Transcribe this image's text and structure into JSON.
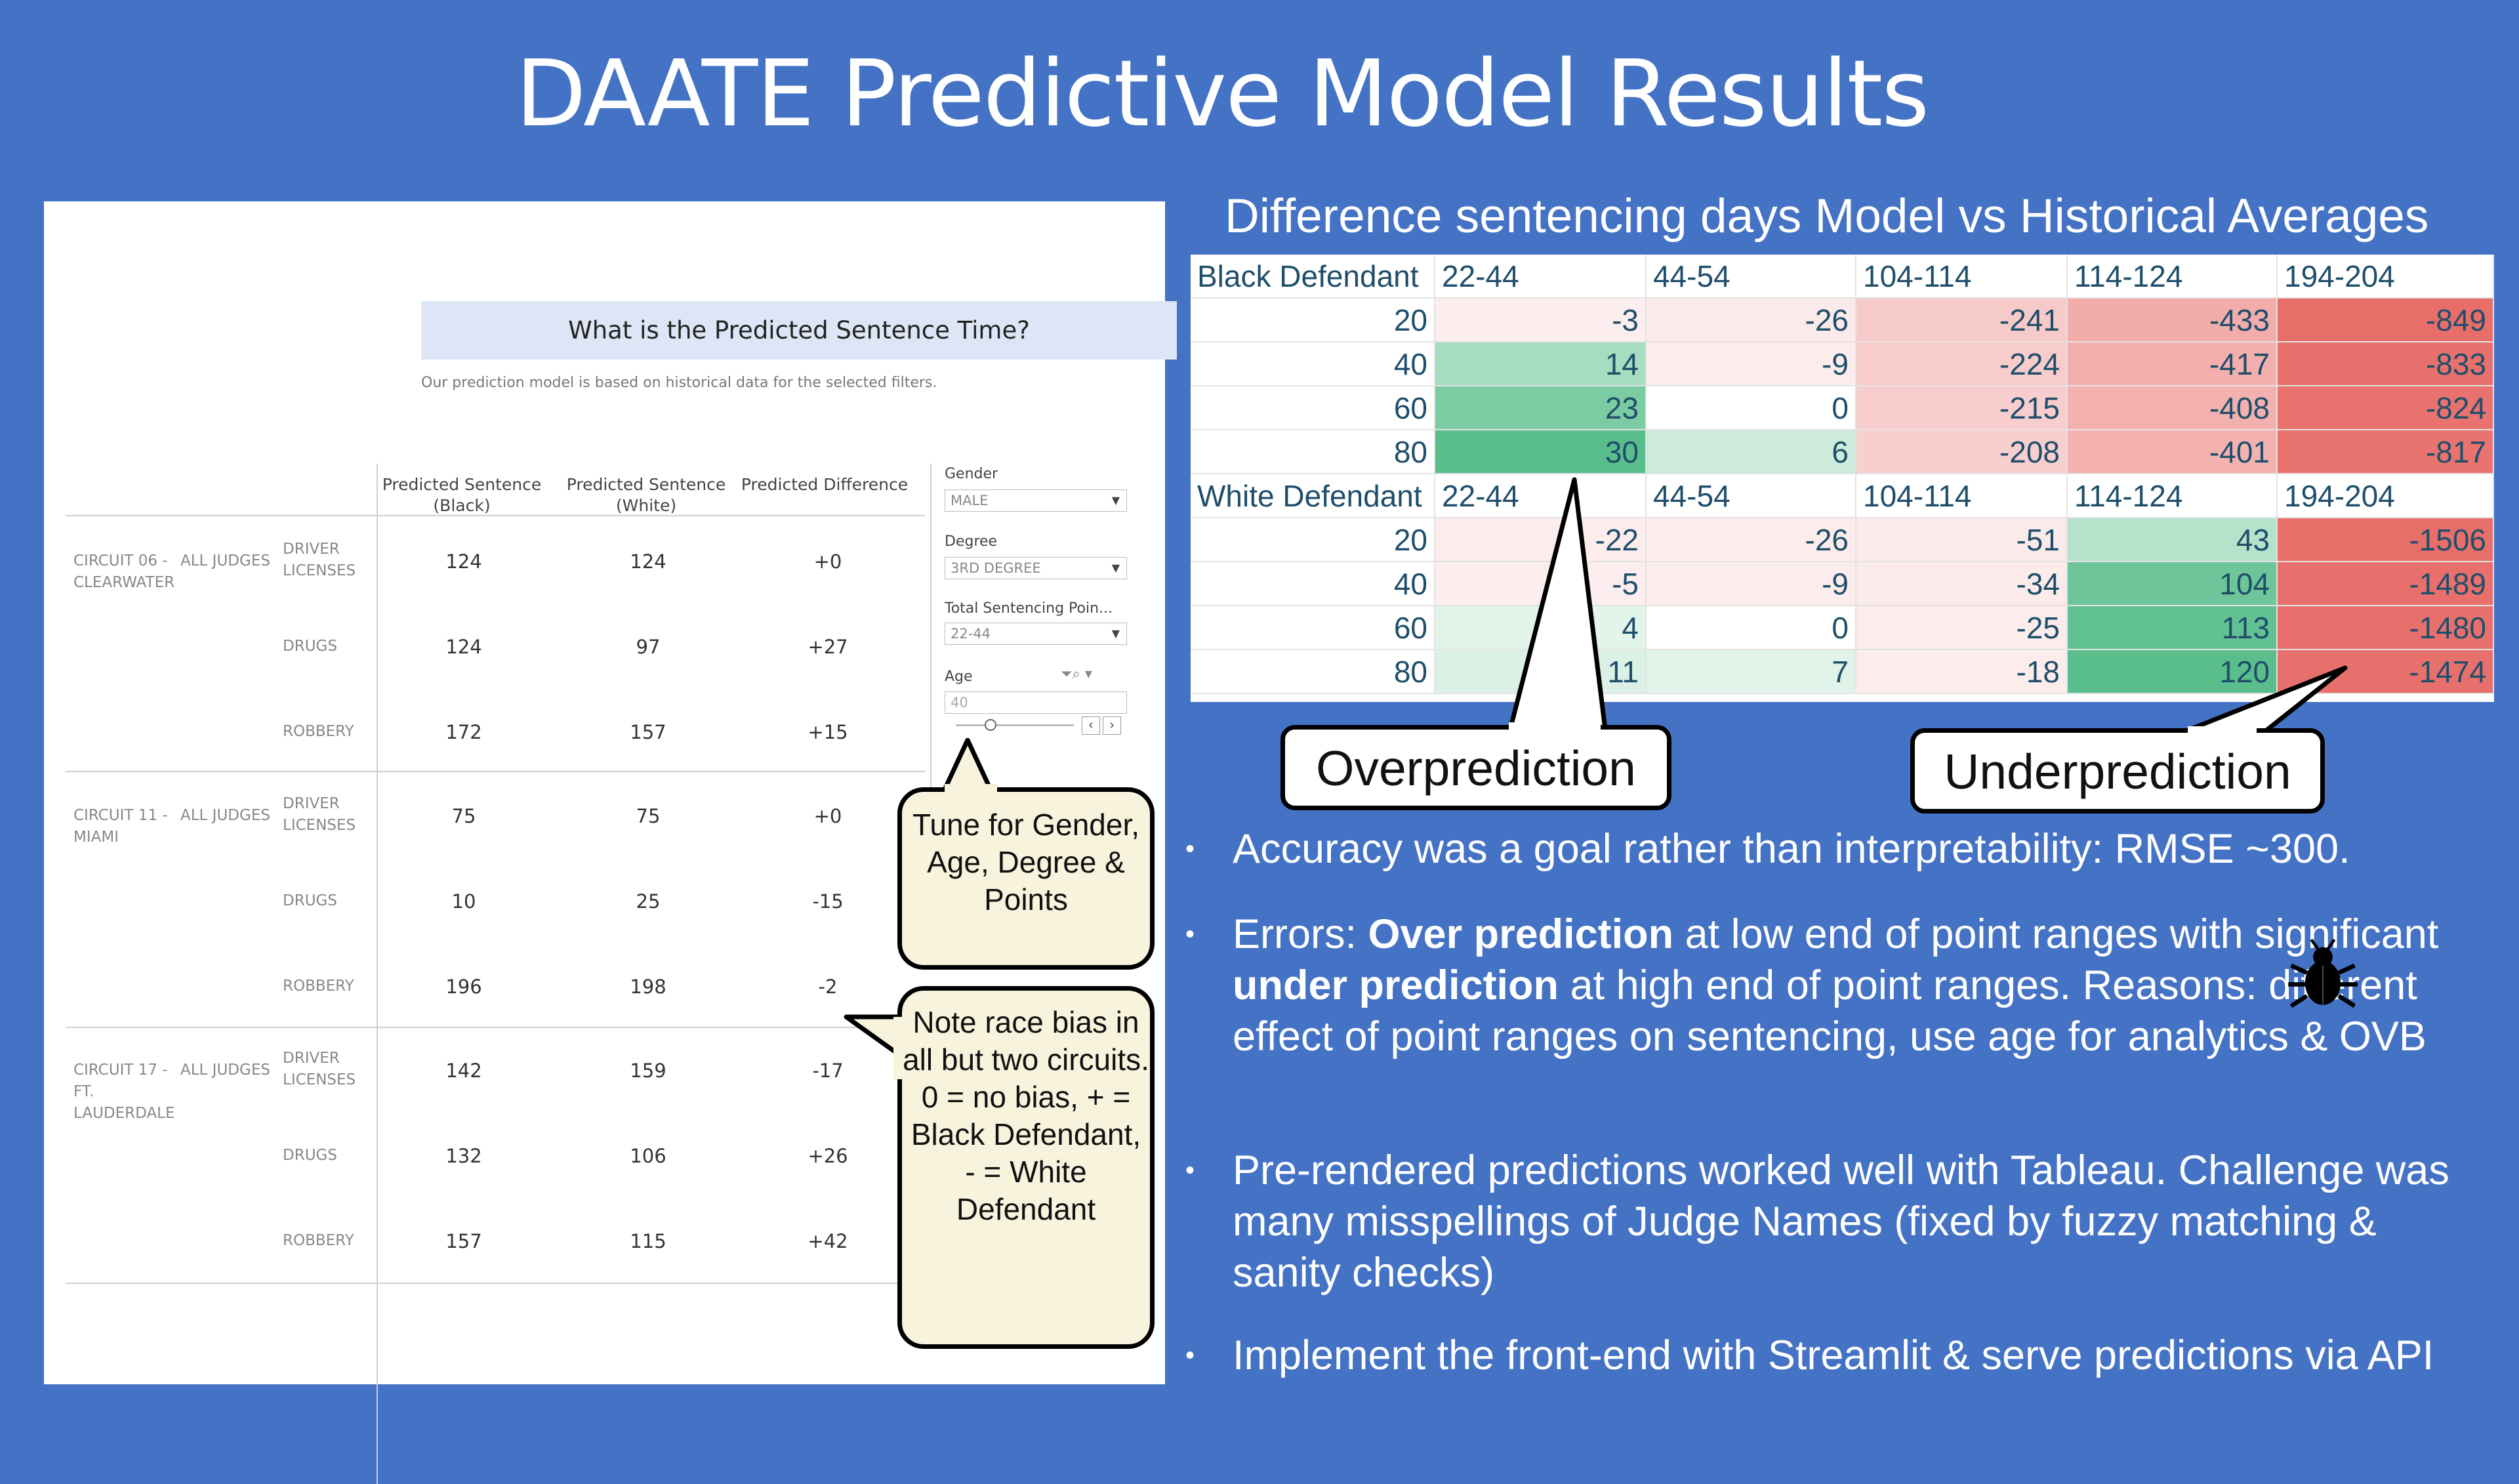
{
  "slide": {
    "title": "DAATE Predictive Model Results"
  },
  "dashboard": {
    "heading": "What is the Predicted Sentence Time?",
    "subheading": "Our prediction model is based on historical data for the selected filters.",
    "columns": [
      "Predicted Sentence (Black)",
      "Predicted Sentence (White)",
      "Predicted Difference"
    ],
    "circuits": [
      {
        "name": "CIRCUIT 06 - CLEARWATER",
        "judge": "ALL JUDGES",
        "rows": [
          {
            "offense": "DRIVER LICENSES",
            "black": "124",
            "white": "124",
            "diff": "+0"
          },
          {
            "offense": "DRUGS",
            "black": "124",
            "white": "97",
            "diff": "+27"
          },
          {
            "offense": "ROBBERY",
            "black": "172",
            "white": "157",
            "diff": "+15"
          }
        ]
      },
      {
        "name": "CIRCUIT 11 - MIAMI",
        "judge": "ALL JUDGES",
        "rows": [
          {
            "offense": "DRIVER LICENSES",
            "black": "75",
            "white": "75",
            "diff": "+0"
          },
          {
            "offense": "DRUGS",
            "black": "10",
            "white": "25",
            "diff": "-15"
          },
          {
            "offense": "ROBBERY",
            "black": "196",
            "white": "198",
            "diff": "-2"
          }
        ]
      },
      {
        "name": "CIRCUIT 17 - FT. LAUDERDALE",
        "judge": "ALL JUDGES",
        "rows": [
          {
            "offense": "DRIVER LICENSES",
            "black": "142",
            "white": "159",
            "diff": "-17"
          },
          {
            "offense": "DRUGS",
            "black": "132",
            "white": "106",
            "diff": "+26"
          },
          {
            "offense": "ROBBERY",
            "black": "157",
            "white": "115",
            "diff": "+42"
          }
        ]
      }
    ],
    "filters": {
      "gender": {
        "label": "Gender",
        "value": "MALE"
      },
      "degree": {
        "label": "Degree",
        "value": "3RD DEGREE"
      },
      "points": {
        "label": "Total Sentencing Poin...",
        "value": "22-44"
      },
      "age": {
        "label": "Age",
        "value": "40"
      }
    }
  },
  "callouts": {
    "tune": "Tune for Gender, Age, Degree & Points",
    "bias": "Note race bias in all but two circuits. 0 = no bias, + = Black Defendant, - = White Defendant",
    "over": "Overprediction",
    "under": "Underprediction"
  },
  "heatmap": {
    "title": "Difference sentencing days Model vs Historical Averages",
    "columns": [
      "22-44",
      "44-54",
      "104-114",
      "114-124",
      "194-204"
    ],
    "groups": [
      {
        "label": "Black Defendant",
        "rows": [
          {
            "age": "20",
            "values": [
              -3,
              -26,
              -241,
              -433,
              -849
            ]
          },
          {
            "age": "40",
            "values": [
              14,
              -9,
              -224,
              -417,
              -833
            ]
          },
          {
            "age": "60",
            "values": [
              23,
              0,
              -215,
              -408,
              -824
            ]
          },
          {
            "age": "80",
            "values": [
              30,
              6,
              -208,
              -401,
              -817
            ]
          }
        ]
      },
      {
        "label": "White Defendant",
        "rows": [
          {
            "age": "20",
            "values": [
              -22,
              -26,
              -51,
              43,
              -1506
            ]
          },
          {
            "age": "40",
            "values": [
              -5,
              -9,
              -34,
              104,
              -1489
            ]
          },
          {
            "age": "60",
            "values": [
              4,
              0,
              -25,
              113,
              -1480
            ]
          },
          {
            "age": "80",
            "values": [
              11,
              7,
              -18,
              120,
              -1474
            ]
          }
        ]
      }
    ]
  },
  "bullets": {
    "b1": "Accuracy was a goal rather than interpretability: RMSE ~300.",
    "b2_a": "Errors: ",
    "b2_b": "Over prediction",
    "b2_c": " at low end of point ranges with significant ",
    "b2_d": "under prediction",
    "b2_e": " at high end of point ranges. Reasons: different effect of point ranges on sentencing, use age for analytics & OVB",
    "b3": "Pre-rendered predictions worked well with Tableau. Challenge was many misspellings of Judge Names (fixed by fuzzy matching & sanity checks)",
    "b4": "Implement the front-end with Streamlit & serve predictions via API"
  },
  "icons": {
    "bug": "bug-icon"
  }
}
